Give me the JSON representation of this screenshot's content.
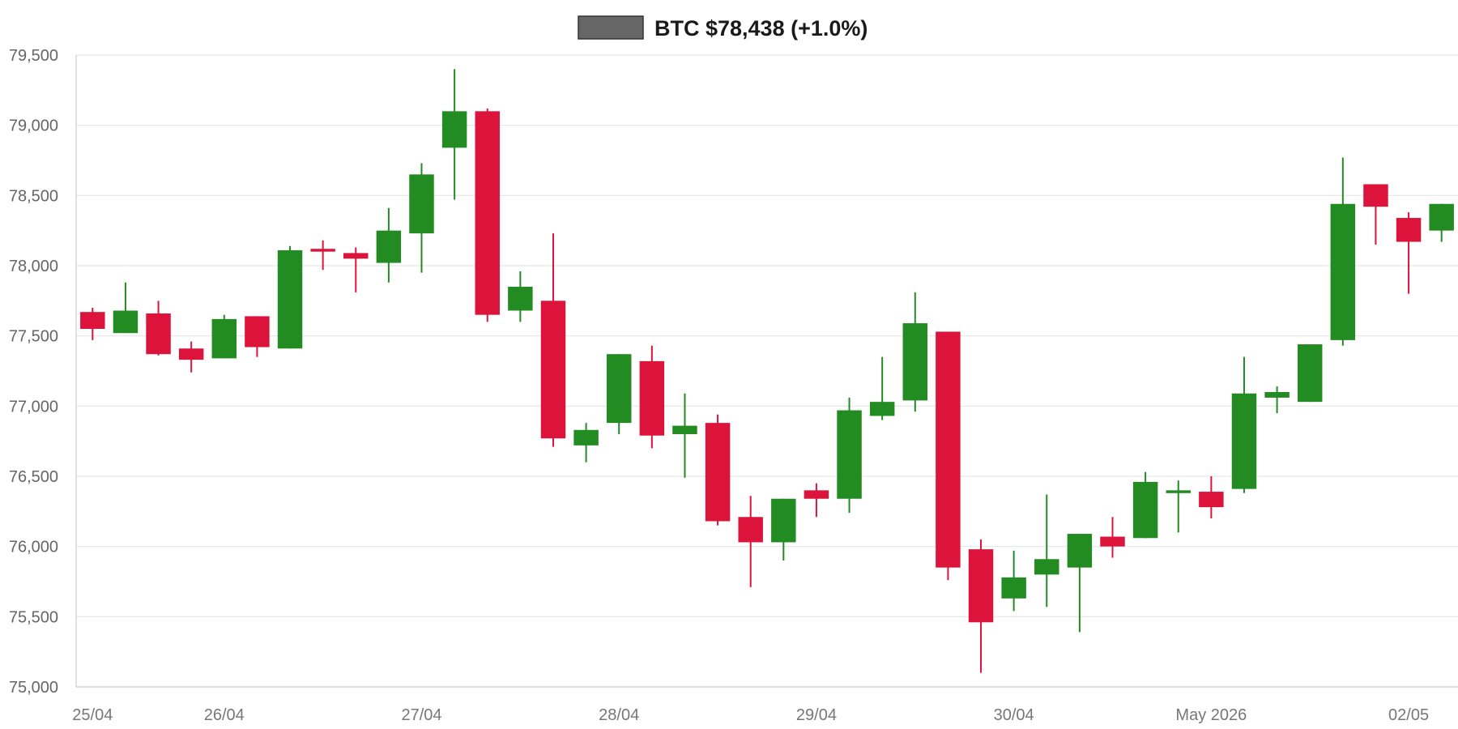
{
  "chart_data": {
    "type": "candlestick",
    "legend": {
      "label": "BTC $78,438 (+1.0%)",
      "swatch_color": "#666666",
      "position": "top-center"
    },
    "colors": {
      "up": "#228b22",
      "down": "#dc143c",
      "grid": "#e6e6e6",
      "axis": "#cccccc"
    },
    "grid": true,
    "ylim": [
      75000,
      79500
    ],
    "y_ticks": [
      {
        "value": 75000,
        "label": "75,000"
      },
      {
        "value": 75500,
        "label": "75,500"
      },
      {
        "value": 76000,
        "label": "76,000"
      },
      {
        "value": 76500,
        "label": "76,500"
      },
      {
        "value": 77000,
        "label": "77,000"
      },
      {
        "value": 77500,
        "label": "77,500"
      },
      {
        "value": 78000,
        "label": "78,000"
      },
      {
        "value": 78500,
        "label": "78,500"
      },
      {
        "value": 79000,
        "label": "79,000"
      },
      {
        "value": 79500,
        "label": "79,500"
      }
    ],
    "xlim": [
      0,
      42
    ],
    "x_ticks": [
      {
        "x": 0.5,
        "label": "25/04"
      },
      {
        "x": 4.5,
        "label": "26/04"
      },
      {
        "x": 10.5,
        "label": "27/04"
      },
      {
        "x": 16.5,
        "label": "28/04"
      },
      {
        "x": 22.5,
        "label": "29/04"
      },
      {
        "x": 28.5,
        "label": "30/04"
      },
      {
        "x": 34.5,
        "label": "May 2026"
      },
      {
        "x": 40.5,
        "label": "02/05"
      }
    ],
    "candles": [
      {
        "x": 0.5,
        "open": 77670,
        "high": 77700,
        "low": 77470,
        "close": 77550
      },
      {
        "x": 1.5,
        "open": 77520,
        "high": 77880,
        "low": 77520,
        "close": 77680
      },
      {
        "x": 2.5,
        "open": 77660,
        "high": 77750,
        "low": 77360,
        "close": 77370
      },
      {
        "x": 3.5,
        "open": 77410,
        "high": 77460,
        "low": 77240,
        "close": 77330
      },
      {
        "x": 4.5,
        "open": 77340,
        "high": 77650,
        "low": 77340,
        "close": 77620
      },
      {
        "x": 5.5,
        "open": 77640,
        "high": 77640,
        "low": 77350,
        "close": 77420
      },
      {
        "x": 6.5,
        "open": 77410,
        "high": 78140,
        "low": 77410,
        "close": 78110
      },
      {
        "x": 7.5,
        "open": 78120,
        "high": 78180,
        "low": 77970,
        "close": 78100
      },
      {
        "x": 8.5,
        "open": 78090,
        "high": 78130,
        "low": 77810,
        "close": 78050
      },
      {
        "x": 9.5,
        "open": 78020,
        "high": 78410,
        "low": 77880,
        "close": 78250
      },
      {
        "x": 10.5,
        "open": 78230,
        "high": 78730,
        "low": 77950,
        "close": 78650
      },
      {
        "x": 11.5,
        "open": 78840,
        "high": 79400,
        "low": 78470,
        "close": 79100
      },
      {
        "x": 12.5,
        "open": 79100,
        "high": 79120,
        "low": 77600,
        "close": 77650
      },
      {
        "x": 13.5,
        "open": 77680,
        "high": 77960,
        "low": 77600,
        "close": 77850
      },
      {
        "x": 14.5,
        "open": 77750,
        "high": 78230,
        "low": 76710,
        "close": 76770
      },
      {
        "x": 15.5,
        "open": 76720,
        "high": 76880,
        "low": 76600,
        "close": 76830
      },
      {
        "x": 16.5,
        "open": 76880,
        "high": 77370,
        "low": 76800,
        "close": 77370
      },
      {
        "x": 17.5,
        "open": 77320,
        "high": 77430,
        "low": 76700,
        "close": 76790
      },
      {
        "x": 18.5,
        "open": 76800,
        "high": 77090,
        "low": 76490,
        "close": 76860
      },
      {
        "x": 19.5,
        "open": 76880,
        "high": 76940,
        "low": 76150,
        "close": 76180
      },
      {
        "x": 20.5,
        "open": 76210,
        "high": 76360,
        "low": 75710,
        "close": 76030
      },
      {
        "x": 21.5,
        "open": 76030,
        "high": 76340,
        "low": 75900,
        "close": 76340
      },
      {
        "x": 22.5,
        "open": 76400,
        "high": 76450,
        "low": 76210,
        "close": 76340
      },
      {
        "x": 23.5,
        "open": 76340,
        "high": 77060,
        "low": 76240,
        "close": 76970
      },
      {
        "x": 24.5,
        "open": 76930,
        "high": 77350,
        "low": 76900,
        "close": 77030
      },
      {
        "x": 25.5,
        "open": 77040,
        "high": 77810,
        "low": 76960,
        "close": 77590
      },
      {
        "x": 26.5,
        "open": 77530,
        "high": 77530,
        "low": 75760,
        "close": 75850
      },
      {
        "x": 27.5,
        "open": 75980,
        "high": 76050,
        "low": 75100,
        "close": 75460
      },
      {
        "x": 28.5,
        "open": 75630,
        "high": 75970,
        "low": 75540,
        "close": 75780
      },
      {
        "x": 29.5,
        "open": 75800,
        "high": 76370,
        "low": 75570,
        "close": 75910
      },
      {
        "x": 30.5,
        "open": 75850,
        "high": 76090,
        "low": 75390,
        "close": 76090
      },
      {
        "x": 31.5,
        "open": 76070,
        "high": 76210,
        "low": 75920,
        "close": 76000
      },
      {
        "x": 32.5,
        "open": 76060,
        "high": 76530,
        "low": 76060,
        "close": 76460
      },
      {
        "x": 33.5,
        "open": 76380,
        "high": 76470,
        "low": 76100,
        "close": 76400
      },
      {
        "x": 34.5,
        "open": 76390,
        "high": 76500,
        "low": 76200,
        "close": 76280
      },
      {
        "x": 35.5,
        "open": 76410,
        "high": 77350,
        "low": 76380,
        "close": 77090
      },
      {
        "x": 36.5,
        "open": 77060,
        "high": 77140,
        "low": 76950,
        "close": 77100
      },
      {
        "x": 37.5,
        "open": 77030,
        "high": 77440,
        "low": 77030,
        "close": 77440
      },
      {
        "x": 38.5,
        "open": 77470,
        "high": 78770,
        "low": 77430,
        "close": 78440
      },
      {
        "x": 39.5,
        "open": 78580,
        "high": 78580,
        "low": 78150,
        "close": 78420
      },
      {
        "x": 40.5,
        "open": 78340,
        "high": 78380,
        "low": 77800,
        "close": 78170
      },
      {
        "x": 41.5,
        "open": 78250,
        "high": 78440,
        "low": 78170,
        "close": 78440
      }
    ]
  }
}
